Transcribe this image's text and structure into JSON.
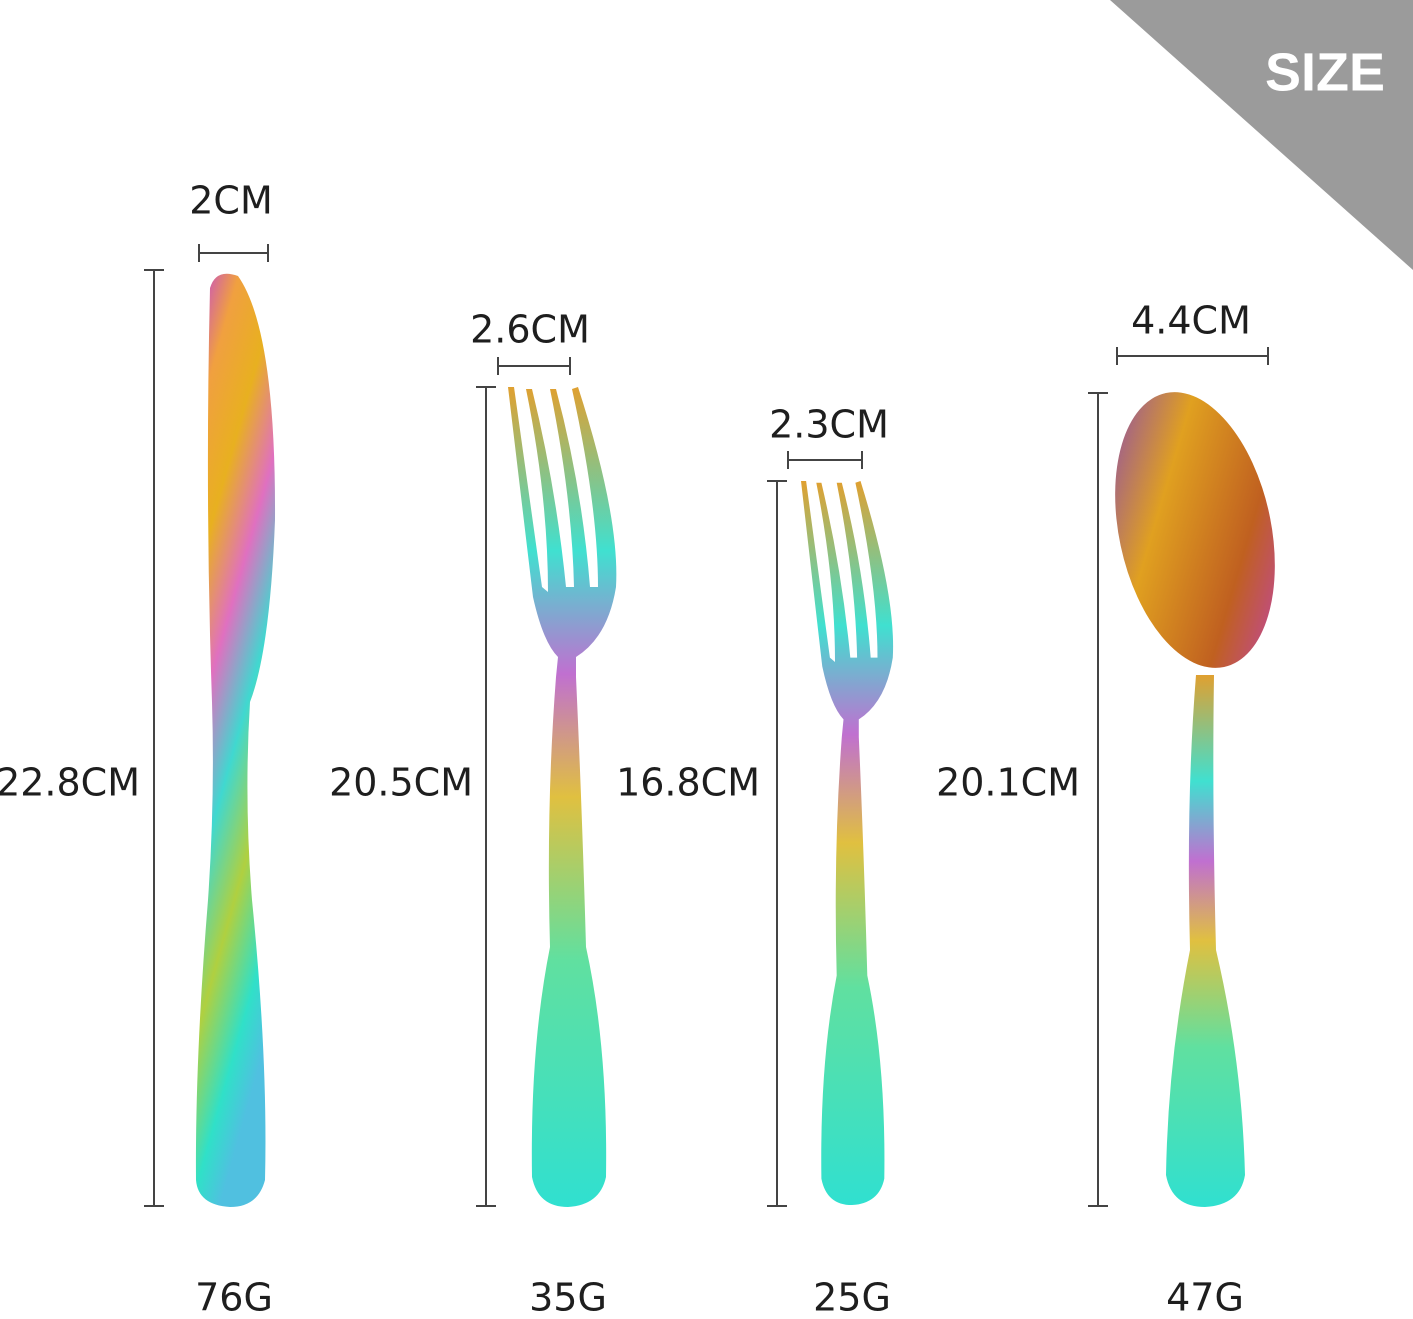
{
  "badge": "SIZE",
  "items": [
    {
      "width": "2CM",
      "length": "22.8CM",
      "weight": "76G"
    },
    {
      "width": "2.6CM",
      "length": "20.5CM",
      "weight": "35G"
    },
    {
      "width": "2.3CM",
      "length": "16.8CM",
      "weight": "25G"
    },
    {
      "width": "4.4CM",
      "length": "20.1CM",
      "weight": "47G"
    }
  ]
}
